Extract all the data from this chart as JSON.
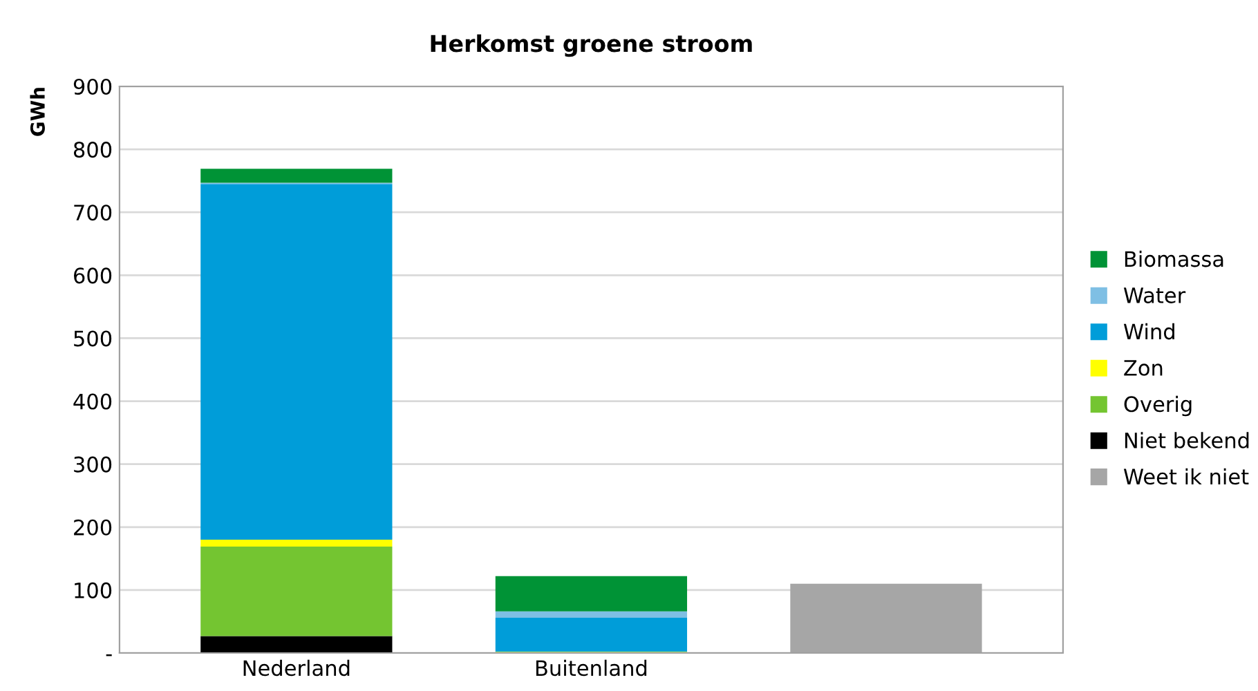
{
  "chart_data": {
    "type": "bar",
    "title": "Herkomst groene stroom",
    "ylabel": "GWh",
    "categories": [
      "Nederland",
      "Buitenland",
      null
    ],
    "stacked": true,
    "series": [
      {
        "name": "Weet ik niet",
        "color": "#a6a6a6",
        "values": [
          null,
          null,
          110
        ]
      },
      {
        "name": "Niet bekend",
        "color": "#000000",
        "values": [
          27,
          null,
          null
        ]
      },
      {
        "name": "Overig",
        "color": "#74c531",
        "values": [
          142,
          null,
          null
        ]
      },
      {
        "name": "Zon",
        "color": "#ffff00",
        "values": [
          11,
          2,
          null
        ]
      },
      {
        "name": "Wind",
        "color": "#009dd9",
        "values": [
          565,
          54,
          null
        ]
      },
      {
        "name": "Water",
        "color": "#7fbfe4",
        "values": [
          2,
          10,
          null
        ]
      },
      {
        "name": "Biomassa",
        "color": "#009336",
        "values": [
          22,
          56,
          null
        ]
      }
    ],
    "ylim": [
      0,
      900
    ],
    "yticks": [
      {
        "value": 0,
        "label": "-"
      },
      100,
      200,
      300,
      400,
      500,
      600,
      700,
      800,
      900
    ],
    "grid": "y",
    "legend": "right"
  }
}
